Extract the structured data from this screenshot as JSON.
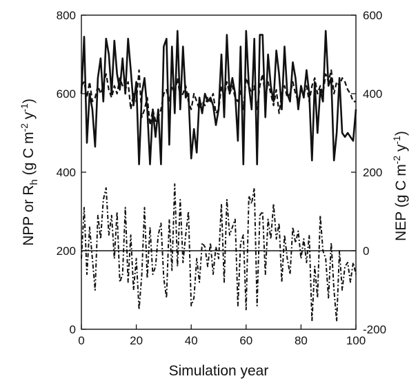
{
  "chart_data": {
    "type": "line",
    "xlabel": "Simulation year",
    "ylabel_left": "NPP or Rh  (g C m-2 y-1)",
    "ylabel_right": "NEP  (g C m-2 y-1)",
    "xlim": [
      0,
      100
    ],
    "ylim_left": [
      0,
      800
    ],
    "ylim_right": [
      -200,
      600
    ],
    "grid": false,
    "legend": "none",
    "x_ticks": [
      "0",
      "20",
      "40",
      "60",
      "80",
      "100"
    ],
    "y_left_ticks": [
      "0",
      "200",
      "400",
      "600",
      "800"
    ],
    "y_right_ticks": [
      "-200",
      "0",
      "200",
      "400",
      "600"
    ],
    "series": [
      {
        "axis": "left",
        "style": "solid",
        "x": [
          0,
          1,
          2,
          3,
          4,
          5,
          6,
          7,
          8,
          9,
          10,
          11,
          12,
          13,
          14,
          15,
          16,
          17,
          18,
          19,
          20,
          21,
          22,
          23,
          24,
          25,
          26,
          27,
          28,
          29,
          30,
          31,
          32,
          33,
          34,
          35,
          36,
          37,
          38,
          39,
          40,
          41,
          42,
          43,
          44,
          45,
          46,
          47,
          48,
          49,
          50,
          51,
          52,
          53,
          54,
          55,
          56,
          57,
          58,
          59,
          60,
          61,
          62,
          63,
          64,
          65,
          66,
          67,
          68,
          69,
          70,
          71,
          72,
          73,
          74,
          75,
          76,
          77,
          78,
          79,
          80,
          81,
          82,
          83,
          84,
          85,
          86,
          87,
          88,
          89,
          90,
          91,
          92,
          93,
          94,
          95,
          96,
          97,
          98,
          99,
          100
        ],
        "values": [
          600,
          745,
          475,
          600,
          560,
          465,
          640,
          690,
          580,
          740,
          700,
          600,
          735,
          650,
          610,
          690,
          600,
          740,
          660,
          570,
          630,
          420,
          600,
          640,
          560,
          420,
          560,
          490,
          560,
          420,
          720,
          740,
          470,
          720,
          550,
          760,
          560,
          720,
          590,
          600,
          435,
          510,
          450,
          590,
          550,
          600,
          580,
          590,
          570,
          520,
          560,
          700,
          540,
          750,
          600,
          640,
          600,
          480,
          720,
          420,
          760,
          620,
          560,
          740,
          420,
          750,
          750,
          540,
          700,
          620,
          580,
          710,
          650,
          560,
          720,
          600,
          580,
          680,
          640,
          560,
          620,
          590,
          660,
          600,
          430,
          630,
          500,
          610,
          580,
          760,
          620,
          640,
          430,
          500,
          640,
          500,
          490,
          500,
          490,
          480,
          560
        ]
      },
      {
        "axis": "left",
        "style": "dashed",
        "x": [
          0,
          1,
          2,
          3,
          4,
          5,
          6,
          7,
          8,
          9,
          10,
          11,
          12,
          13,
          14,
          15,
          16,
          17,
          18,
          19,
          20,
          21,
          22,
          23,
          24,
          25,
          26,
          27,
          28,
          29,
          30,
          31,
          32,
          33,
          34,
          35,
          36,
          37,
          38,
          39,
          40,
          41,
          42,
          43,
          44,
          45,
          46,
          47,
          48,
          49,
          50,
          51,
          52,
          53,
          54,
          55,
          56,
          57,
          58,
          59,
          60,
          61,
          62,
          63,
          64,
          65,
          66,
          67,
          68,
          69,
          70,
          71,
          72,
          73,
          74,
          75,
          76,
          77,
          78,
          79,
          80,
          81,
          82,
          83,
          84,
          85,
          86,
          87,
          88,
          89,
          90,
          91,
          92,
          93,
          94,
          95,
          96,
          97,
          98,
          99,
          100
        ],
        "values": [
          620,
          630,
          590,
          630,
          580,
          590,
          620,
          600,
          620,
          650,
          610,
          590,
          620,
          600,
          640,
          620,
          610,
          630,
          560,
          600,
          580,
          660,
          540,
          560,
          590,
          520,
          560,
          530,
          540,
          560,
          600,
          610,
          580,
          620,
          600,
          640,
          590,
          600,
          620,
          580,
          560,
          600,
          580,
          560,
          580,
          570,
          590,
          580,
          600,
          550,
          560,
          620,
          590,
          630,
          600,
          620,
          590,
          580,
          610,
          560,
          640,
          620,
          600,
          620,
          560,
          620,
          650,
          590,
          630,
          600,
          570,
          610,
          550,
          600,
          620,
          590,
          600,
          630,
          600,
          580,
          610,
          600,
          620,
          580,
          620,
          640,
          600,
          620,
          600,
          650,
          630,
          660,
          600,
          630,
          620,
          640,
          630,
          610,
          600,
          580,
          580
        ]
      },
      {
        "axis": "right",
        "style": "dash-dot",
        "x": [
          0,
          1,
          2,
          3,
          4,
          5,
          6,
          7,
          8,
          9,
          10,
          11,
          12,
          13,
          14,
          15,
          16,
          17,
          18,
          19,
          20,
          21,
          22,
          23,
          24,
          25,
          26,
          27,
          28,
          29,
          30,
          31,
          32,
          33,
          34,
          35,
          36,
          37,
          38,
          39,
          40,
          41,
          42,
          43,
          44,
          45,
          46,
          47,
          48,
          49,
          50,
          51,
          52,
          53,
          54,
          55,
          56,
          57,
          58,
          59,
          60,
          61,
          62,
          63,
          64,
          65,
          66,
          67,
          68,
          69,
          70,
          71,
          72,
          73,
          74,
          75,
          76,
          77,
          78,
          79,
          80,
          81,
          82,
          83,
          84,
          85,
          86,
          87,
          88,
          89,
          90,
          91,
          92,
          93,
          94,
          95,
          96,
          97,
          98,
          99,
          100
        ],
        "values": [
          -20,
          110,
          -60,
          60,
          -20,
          -100,
          90,
          30,
          130,
          160,
          40,
          90,
          -20,
          100,
          -80,
          -60,
          110,
          -80,
          40,
          -100,
          -20,
          -150,
          -60,
          110,
          -70,
          60,
          -60,
          -40,
          40,
          70,
          -70,
          -120,
          80,
          -50,
          170,
          -40,
          130,
          -30,
          40,
          100,
          -140,
          -120,
          -20,
          -80,
          20,
          10,
          -40,
          20,
          -60,
          10,
          -20,
          120,
          -80,
          130,
          40,
          60,
          80,
          -140,
          20,
          40,
          -150,
          140,
          120,
          160,
          -140,
          90,
          100,
          -60,
          80,
          30,
          120,
          30,
          70,
          -80,
          40,
          -20,
          -60,
          60,
          20,
          50,
          -20,
          30,
          -30,
          40,
          -180,
          -40,
          -120,
          90,
          0,
          -20,
          -120,
          20,
          -100,
          -180,
          0,
          -100,
          -40,
          -30,
          -80,
          -30,
          -60
        ]
      },
      {
        "axis": "right",
        "style": "solid-thin",
        "x": [
          0,
          100
        ],
        "values": [
          0,
          0
        ]
      }
    ]
  }
}
